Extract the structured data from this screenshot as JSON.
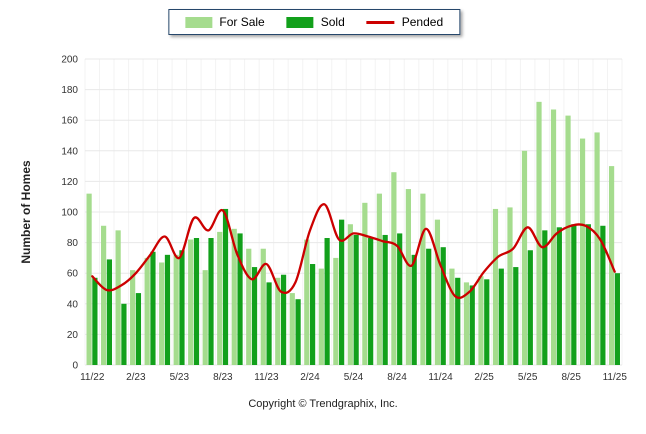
{
  "legend": {
    "for_sale": "For Sale",
    "sold": "Sold",
    "pended": "Pended"
  },
  "footer": {
    "copyright": "Copyright © Trendgraphix, Inc."
  },
  "colors": {
    "for_sale": "#a5dc8e",
    "sold": "#12a01b",
    "pended": "#cc0000",
    "grid": "#e8e8e8",
    "grid_vertical": "#f3f3f3",
    "axis_text": "#333333",
    "legend_border": "#26476b"
  },
  "chart_data": {
    "type": "bar",
    "title": "",
    "xlabel": "",
    "ylabel": "Number of Homes",
    "ylim": [
      0,
      200
    ],
    "ytick_step": 20,
    "grid": "horizontal",
    "legend_position": "top-center",
    "x_tick_labels": [
      "11/22",
      "2/23",
      "5/23",
      "8/23",
      "11/23",
      "2/24",
      "5/24",
      "8/24",
      "11/24",
      "2/25",
      "5/25",
      "8/25",
      "11/25"
    ],
    "x_tick_every": 3,
    "categories": [
      "11/22",
      "12/22",
      "1/23",
      "2/23",
      "3/23",
      "4/23",
      "5/23",
      "6/23",
      "7/23",
      "8/23",
      "9/23",
      "10/23",
      "11/23",
      "12/23",
      "1/24",
      "2/24",
      "3/24",
      "4/24",
      "5/24",
      "6/24",
      "7/24",
      "8/24",
      "9/24",
      "10/24",
      "11/24",
      "12/24",
      "1/25",
      "2/25",
      "3/25",
      "4/25",
      "5/25",
      "6/25",
      "7/25",
      "8/25",
      "9/25",
      "10/25",
      "11/25"
    ],
    "series": [
      {
        "name": "For Sale",
        "kind": "bar",
        "color": "#a5dc8e",
        "values": [
          112,
          91,
          88,
          62,
          70,
          67,
          72,
          82,
          62,
          87,
          89,
          76,
          76,
          57,
          47,
          82,
          63,
          70,
          92,
          106,
          112,
          126,
          115,
          112,
          95,
          63,
          54,
          58,
          102,
          103,
          140,
          172,
          167,
          163,
          148,
          152,
          130
        ]
      },
      {
        "name": "Sold",
        "kind": "bar",
        "color": "#12a01b",
        "values": [
          57,
          69,
          40,
          47,
          74,
          72,
          75,
          83,
          83,
          102,
          86,
          64,
          54,
          59,
          43,
          66,
          83,
          95,
          85,
          83,
          85,
          86,
          72,
          76,
          77,
          57,
          52,
          56,
          63,
          64,
          75,
          88,
          90,
          92,
          92,
          91,
          60
        ]
      },
      {
        "name": "Pended",
        "kind": "line",
        "color": "#cc0000",
        "values": [
          58,
          49,
          52,
          60,
          72,
          84,
          70,
          96,
          88,
          101,
          72,
          56,
          66,
          48,
          54,
          88,
          105,
          82,
          86,
          84,
          81,
          78,
          65,
          89,
          65,
          45,
          48,
          61,
          71,
          76,
          90,
          77,
          86,
          91,
          91,
          82,
          61
        ]
      }
    ]
  }
}
